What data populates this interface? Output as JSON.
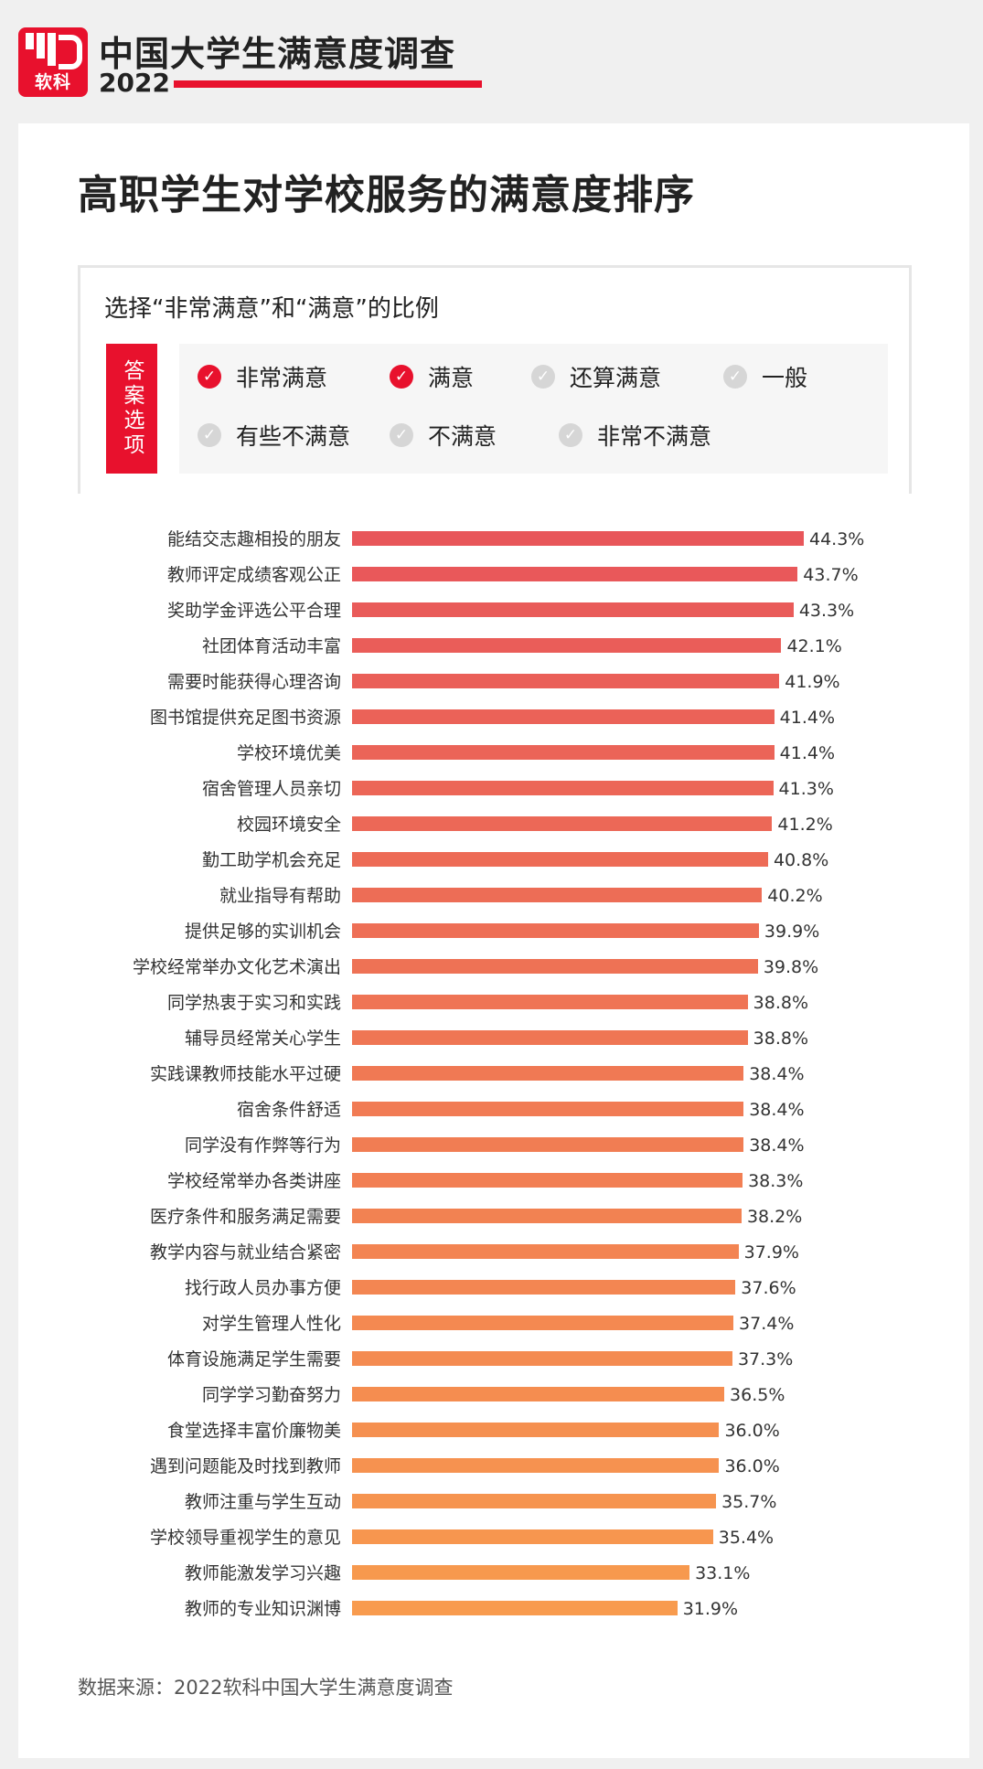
{
  "header": {
    "logo_text": "软科",
    "survey_title": "中国大学生满意度调查",
    "year": "2022"
  },
  "page_title": "高职学生对学校服务的满意度排序",
  "question": "选择“非常满意”和“满意”的比例",
  "options_label": "答案选项",
  "options": [
    {
      "label": "非常满意",
      "checked": true
    },
    {
      "label": "满意",
      "checked": true
    },
    {
      "label": "还算满意",
      "checked": false
    },
    {
      "label": "一般",
      "checked": false
    },
    {
      "label": "有些不满意",
      "checked": false
    },
    {
      "label": "不满意",
      "checked": false
    },
    {
      "label": "非常不满意",
      "checked": false
    }
  ],
  "colors": {
    "brand_red": "#e8112d",
    "bar_top": "#e8565a",
    "bar_bottom": "#f89b4e"
  },
  "chart_data": {
    "type": "bar",
    "orientation": "horizontal",
    "categories": [
      "能结交志趣相投的朋友",
      "教师评定成绩客观公正",
      "奖助学金评选公平合理",
      "社团体育活动丰富",
      "需要时能获得心理咨询",
      "图书馆提供充足图书资源",
      "学校环境优美",
      "宿舍管理人员亲切",
      "校园环境安全",
      "勤工助学机会充足",
      "就业指导有帮助",
      "提供足够的实训机会",
      "学校经常举办文化艺术演出",
      "同学热衷于实习和实践",
      "辅导员经常关心学生",
      "实践课教师技能水平过硬",
      "宿舍条件舒适",
      "同学没有作弊等行为",
      "学校经常举办各类讲座",
      "医疗条件和服务满足需要",
      "教学内容与就业结合紧密",
      "找行政人员办事方便",
      "对学生管理人性化",
      "体育设施满足学生需要",
      "同学学习勤奋努力",
      "食堂选择丰富价廉物美",
      "遇到问题能及时找到教师",
      "教师注重与学生互动",
      "学校领导重视学生的意见",
      "教师能激发学习兴趣",
      "教师的专业知识渊博"
    ],
    "values": [
      44.3,
      43.7,
      43.3,
      42.1,
      41.9,
      41.4,
      41.4,
      41.3,
      41.2,
      40.8,
      40.2,
      39.9,
      39.8,
      38.8,
      38.8,
      38.4,
      38.4,
      38.4,
      38.3,
      38.2,
      37.9,
      37.6,
      37.4,
      37.3,
      36.5,
      36.0,
      36.0,
      35.7,
      35.4,
      33.1,
      31.9
    ],
    "value_labels": [
      "44.3%",
      "43.7%",
      "43.3%",
      "42.1%",
      "41.9%",
      "41.4%",
      "41.4%",
      "41.3%",
      "41.2%",
      "40.8%",
      "40.2%",
      "39.9%",
      "39.8%",
      "38.8%",
      "38.8%",
      "38.4%",
      "38.4%",
      "38.4%",
      "38.3%",
      "38.2%",
      "37.9%",
      "37.6%",
      "37.4%",
      "37.3%",
      "36.5%",
      "36.0%",
      "36.0%",
      "35.7%",
      "35.4%",
      "33.1%",
      "31.9%"
    ],
    "unit": "%",
    "grid": false
  },
  "source": "数据来源：2022软科中国大学生满意度调查"
}
